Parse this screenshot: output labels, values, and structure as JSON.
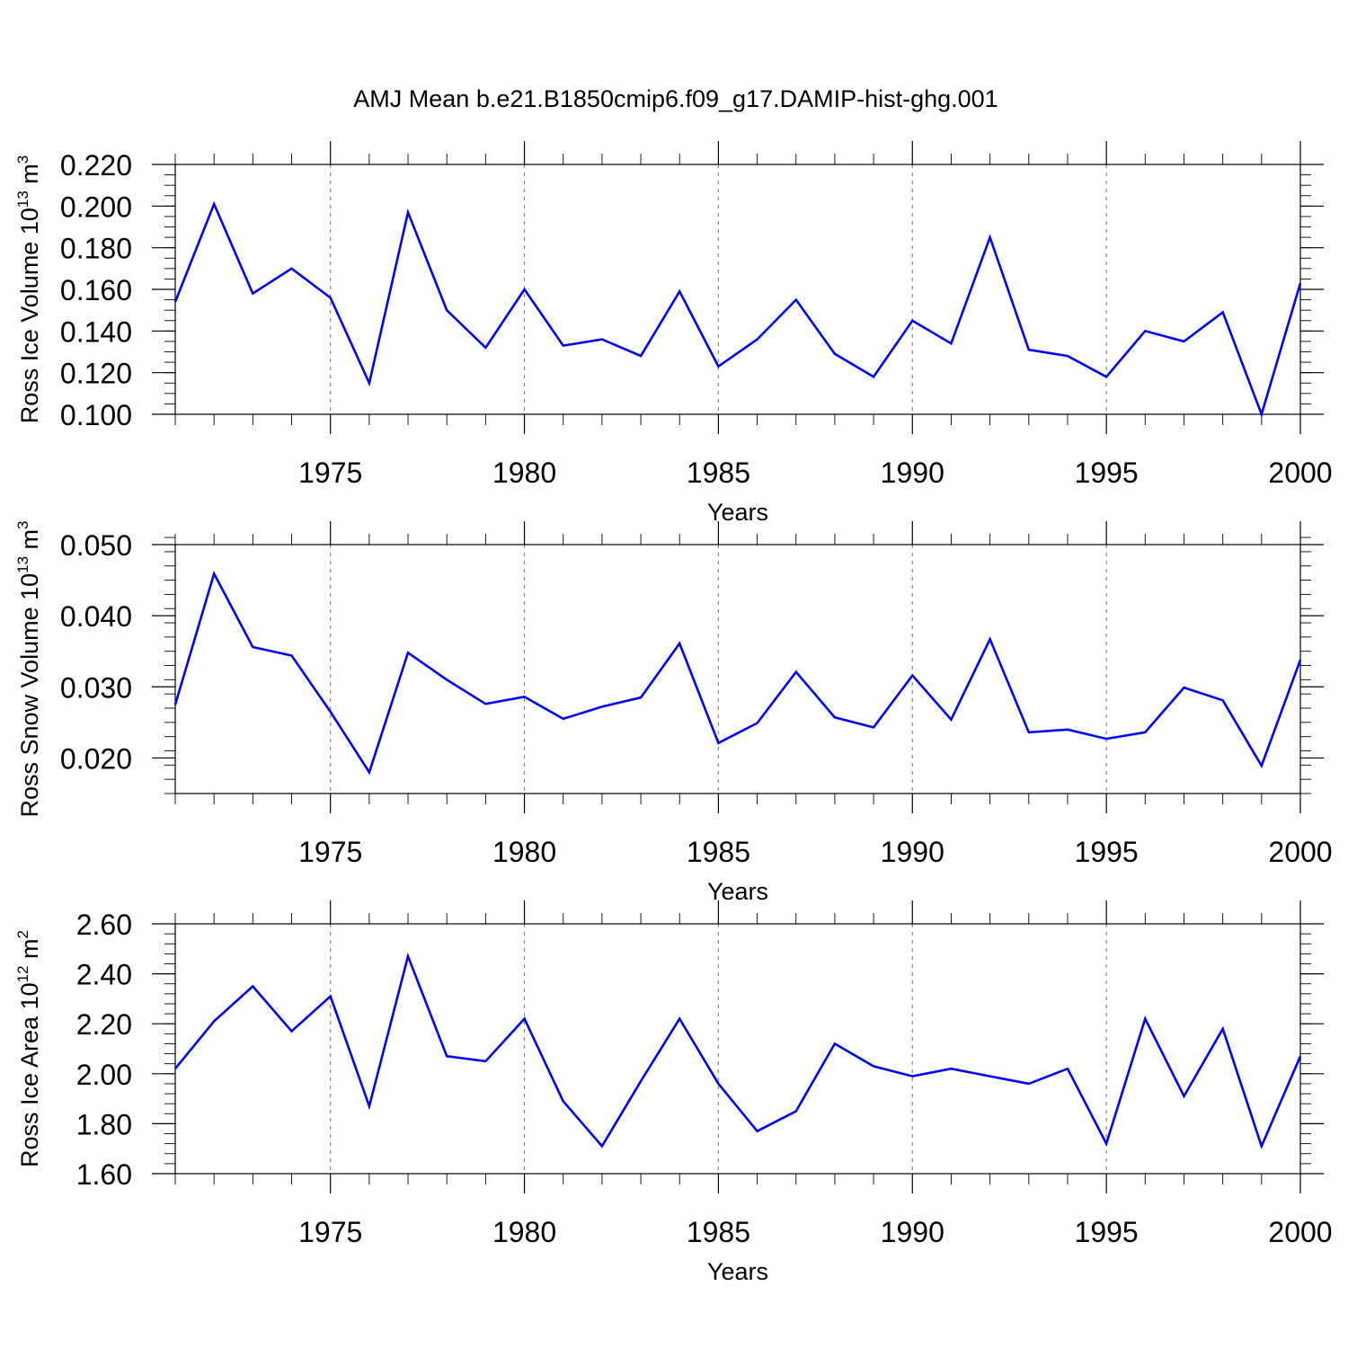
{
  "figure_title": "AMJ Mean b.e21.B1850cmip6.f09_g17.DAMIP-hist-ghg.001",
  "chart_data": [
    {
      "type": "line",
      "id": "ice-volume",
      "title": "AMJ Mean b.e21.B1850cmip6.f09_g17.DAMIP-hist-ghg.001",
      "xlabel": "Years",
      "ylabel_main": "Ross Ice Volume 10",
      "ylabel_sup": "13",
      "ylabel_unit": " m",
      "ylabel_unit_sup": "3",
      "xlim": [
        1971,
        2000
      ],
      "ylim": [
        0.1,
        0.22
      ],
      "xticks": [
        1975,
        1980,
        1985,
        1990,
        1995,
        2000
      ],
      "xtick_labels": [
        "1975",
        "1980",
        "1985",
        "1990",
        "1995",
        "2000"
      ],
      "yticks": [
        0.1,
        0.12,
        0.14,
        0.16,
        0.18,
        0.2,
        0.22
      ],
      "ytick_labels": [
        "0.100",
        "0.120",
        "0.140",
        "0.160",
        "0.180",
        "0.200",
        "0.220"
      ],
      "grid": "vertical dashed at 5-year marks",
      "series": [
        {
          "name": "Ross Ice Volume",
          "color": "#0000ff",
          "x": [
            1971,
            1972,
            1973,
            1974,
            1975,
            1976,
            1977,
            1978,
            1979,
            1980,
            1981,
            1982,
            1983,
            1984,
            1985,
            1986,
            1987,
            1988,
            1989,
            1990,
            1991,
            1992,
            1993,
            1994,
            1995,
            1996,
            1997,
            1998,
            1999,
            2000
          ],
          "values": [
            0.154,
            0.201,
            0.158,
            0.17,
            0.156,
            0.115,
            0.197,
            0.15,
            0.132,
            0.16,
            0.133,
            0.136,
            0.128,
            0.159,
            0.123,
            0.136,
            0.155,
            0.129,
            0.118,
            0.145,
            0.134,
            0.185,
            0.131,
            0.128,
            0.118,
            0.14,
            0.135,
            0.149,
            0.1,
            0.163
          ]
        }
      ]
    },
    {
      "type": "line",
      "id": "snow-volume",
      "xlabel": "Years",
      "ylabel_main": "Ross Snow Volume 10",
      "ylabel_sup": "13",
      "ylabel_unit": " m",
      "ylabel_unit_sup": "3",
      "xlim": [
        1971,
        2000
      ],
      "ylim": [
        0.015,
        0.05
      ],
      "xticks": [
        1975,
        1980,
        1985,
        1990,
        1995,
        2000
      ],
      "xtick_labels": [
        "1975",
        "1980",
        "1985",
        "1990",
        "1995",
        "2000"
      ],
      "yticks": [
        0.02,
        0.03,
        0.04,
        0.05
      ],
      "ytick_labels": [
        "0.020",
        "0.030",
        "0.040",
        "0.050"
      ],
      "grid": "vertical dashed at 5-year marks",
      "series": [
        {
          "name": "Ross Snow Volume",
          "color": "#0000ff",
          "x": [
            1971,
            1972,
            1973,
            1974,
            1975,
            1976,
            1977,
            1978,
            1979,
            1980,
            1981,
            1982,
            1983,
            1984,
            1985,
            1986,
            1987,
            1988,
            1989,
            1990,
            1991,
            1992,
            1993,
            1994,
            1995,
            1996,
            1997,
            1998,
            1999,
            2000
          ],
          "values": [
            0.0275,
            0.0459,
            0.0356,
            0.0344,
            0.0265,
            0.018,
            0.0348,
            0.031,
            0.0276,
            0.0286,
            0.0255,
            0.0272,
            0.0285,
            0.0361,
            0.0221,
            0.0249,
            0.0321,
            0.0257,
            0.0243,
            0.0316,
            0.0254,
            0.0367,
            0.0236,
            0.024,
            0.0227,
            0.0236,
            0.0299,
            0.0281,
            0.0189,
            0.0338
          ]
        }
      ]
    },
    {
      "type": "line",
      "id": "ice-area",
      "xlabel": "Years",
      "ylabel_main": "Ross Ice Area 10",
      "ylabel_sup": "12",
      "ylabel_unit": " m",
      "ylabel_unit_sup": "2",
      "xlim": [
        1971,
        2000
      ],
      "ylim": [
        1.6,
        2.6
      ],
      "xticks": [
        1975,
        1980,
        1985,
        1990,
        1995,
        2000
      ],
      "xtick_labels": [
        "1975",
        "1980",
        "1985",
        "1990",
        "1995",
        "2000"
      ],
      "yticks": [
        1.6,
        1.8,
        2.0,
        2.2,
        2.4,
        2.6
      ],
      "ytick_labels": [
        "1.60",
        "1.80",
        "2.00",
        "2.20",
        "2.40",
        "2.60"
      ],
      "grid": "vertical dashed at 5-year marks",
      "series": [
        {
          "name": "Ross Ice Area",
          "color": "#0000ff",
          "x": [
            1971,
            1972,
            1973,
            1974,
            1975,
            1976,
            1977,
            1978,
            1979,
            1980,
            1981,
            1982,
            1983,
            1984,
            1985,
            1986,
            1987,
            1988,
            1989,
            1990,
            1991,
            1992,
            1993,
            1994,
            1995,
            1996,
            1997,
            1998,
            1999,
            2000
          ],
          "values": [
            2.02,
            2.21,
            2.35,
            2.17,
            2.31,
            1.87,
            2.47,
            2.07,
            2.05,
            2.22,
            1.89,
            1.71,
            1.97,
            2.22,
            1.96,
            1.77,
            1.85,
            2.12,
            2.03,
            1.99,
            2.02,
            1.99,
            1.96,
            2.02,
            1.72,
            2.22,
            1.91,
            2.18,
            1.71,
            2.07
          ]
        }
      ]
    }
  ]
}
